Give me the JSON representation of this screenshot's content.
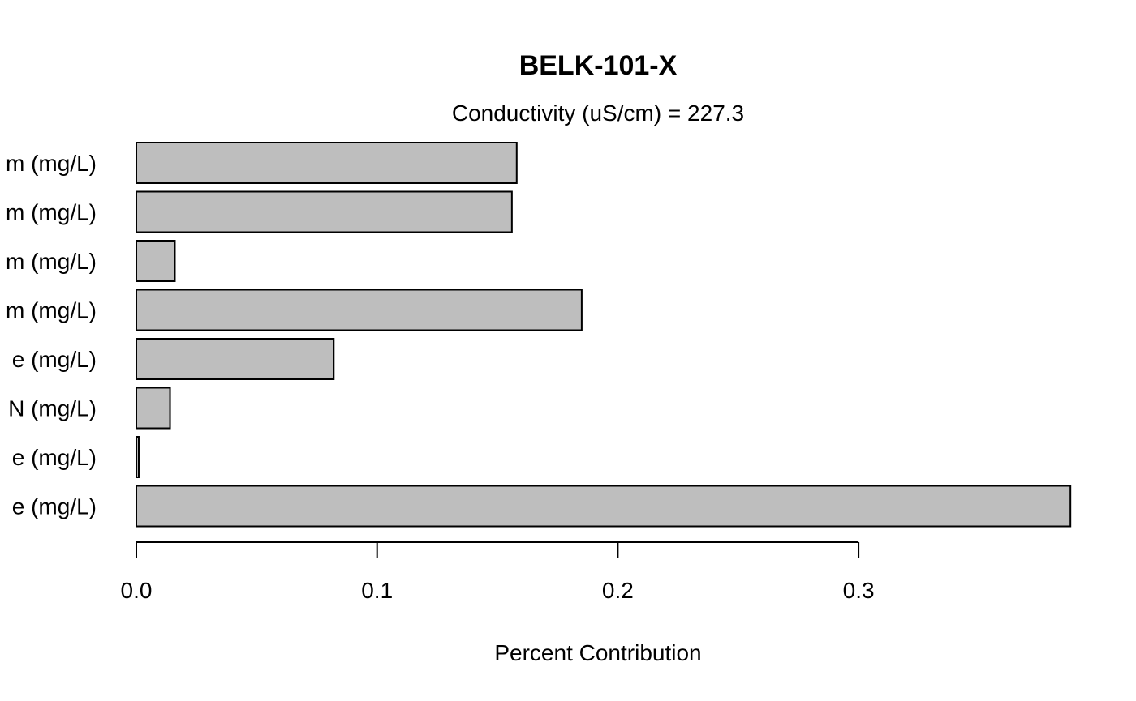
{
  "chart_data": {
    "type": "bar",
    "orientation": "horizontal",
    "title": "BELK-101-X",
    "subtitle": "Conductivity (uS/cm) = 227.3",
    "xlabel": "Percent Contribution",
    "ylabel": "",
    "categories_visible": [
      "m (mg/L)",
      "m (mg/L)",
      "m (mg/L)",
      "m (mg/L)",
      "e (mg/L)",
      "N (mg/L)",
      "e (mg/L)",
      "e (mg/L)"
    ],
    "values": [
      0.158,
      0.156,
      0.016,
      0.185,
      0.082,
      0.014,
      0.001,
      0.388
    ],
    "xlim": [
      0,
      0.39
    ],
    "xticks": [
      0.0,
      0.1,
      0.2,
      0.3
    ],
    "xtick_labels": [
      "0.0",
      "0.1",
      "0.2",
      "0.3"
    ],
    "grid": false,
    "legend": "none",
    "bar_color": "#bebebe",
    "bar_edge_color": "#000000"
  }
}
